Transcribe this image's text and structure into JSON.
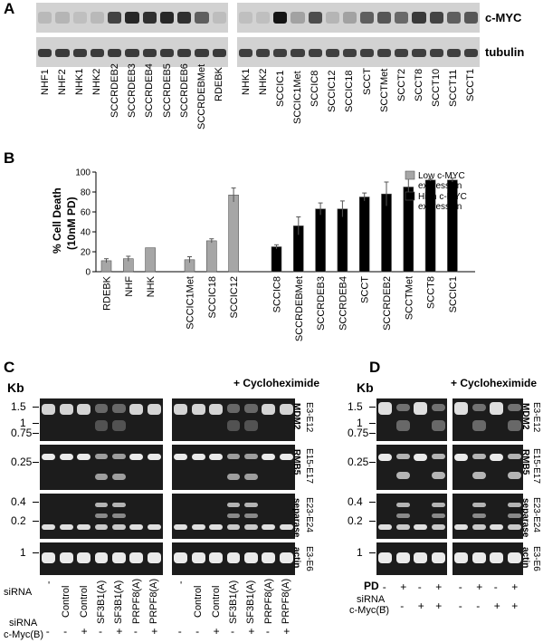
{
  "panel_labels": {
    "a": "A",
    "b": "B",
    "c": "C",
    "d": "D"
  },
  "panel_a": {
    "rows": [
      "c-MYC",
      "tubulin"
    ],
    "left_lanes": [
      "NHF1",
      "NHF2",
      "NHK1",
      "NHK2",
      "SCCRDEB2",
      "SCCRDEB3",
      "SCCRDEB4",
      "SCCRDEB5",
      "SCCRDEB6",
      "SCCRDEBMet",
      "RDEBK"
    ],
    "right_lanes": [
      "NHK1",
      "NHK2",
      "SCCIC1",
      "SCCIC1Met",
      "SCCIC8",
      "SCCIC12",
      "SCCIC18",
      "SCCT",
      "SCCTMet",
      "SCCT2",
      "SCCT8",
      "SCCT10",
      "SCCT11",
      "SCCT1"
    ],
    "left_myc": [
      0.08,
      0.1,
      0.05,
      0.08,
      0.7,
      0.85,
      0.8,
      0.85,
      0.8,
      0.55,
      0.06
    ],
    "right_myc": [
      0.05,
      0.05,
      0.95,
      0.2,
      0.65,
      0.1,
      0.2,
      0.55,
      0.6,
      0.5,
      0.75,
      0.7,
      0.55,
      0.6
    ]
  },
  "chart_data": {
    "type": "bar",
    "ylabel_line1": "% Cell Death",
    "ylabel_line2": "(10nM PD)",
    "ylim": [
      0,
      100
    ],
    "yticks": [
      "0",
      "20",
      "40",
      "60",
      "80",
      "100"
    ],
    "groups": [
      {
        "series": "low",
        "categories": [
          "RDEBK",
          "NHF",
          "NHK"
        ],
        "values": [
          11,
          13,
          24
        ],
        "errors": [
          2,
          2.5,
          0
        ]
      },
      {
        "series": "low",
        "categories": [
          "SCCIC1Met",
          "SCCIC18",
          "SCCIC12"
        ],
        "values": [
          12,
          31,
          77
        ],
        "errors": [
          3,
          2,
          7
        ]
      },
      {
        "series": "high",
        "categories": [
          "SCCIC8",
          "SCCRDEBMet",
          "SCCRDEB3",
          "SCCRDEB4",
          "SCCT",
          "SCCRDEB2",
          "SCCTMet",
          "SCCT8",
          "SCCIC1"
        ],
        "values": [
          25,
          46,
          63,
          63,
          75,
          78,
          85,
          92,
          92
        ],
        "errors": [
          2,
          9,
          6,
          8,
          4,
          12,
          13,
          1,
          2
        ]
      }
    ],
    "legend": [
      {
        "label1": "Low c-MYC",
        "label2": "expression",
        "color": "#a6a6a6"
      },
      {
        "label1": "High c-MYC",
        "label2": "expression",
        "color": "#000000"
      }
    ],
    "colors": {
      "low": "#a6a6a6",
      "high": "#000000"
    }
  },
  "panel_c": {
    "kb": "Kb",
    "cyclo": "+ Cycloheximide",
    "row_labels": [
      {
        "gene": "MDM2",
        "exons": "E3-E12",
        "ticks": [
          "1.5",
          "1",
          "0.75"
        ]
      },
      {
        "gene": "RMB5",
        "exons": "E15-E17",
        "ticks": [
          "0.25"
        ]
      },
      {
        "gene": "separase",
        "exons": "E23-E24",
        "ticks": [
          "0.4",
          "0.2"
        ]
      },
      {
        "gene": "actin",
        "exons": "E3-E6",
        "ticks": [
          "1"
        ]
      }
    ],
    "sirna_label": "siRNA",
    "sirna_lanes": [
      "-",
      "Control",
      "Control",
      "SF3B1(A)",
      "SF3B1(A)",
      "PRPF8(A)",
      "PRPF8(A)"
    ],
    "myc_label1": "siRNA",
    "myc_label2": "c-Myc(B)",
    "myc_signs": [
      "-",
      "-",
      "+",
      "-",
      "+",
      "-",
      "+"
    ]
  },
  "panel_d": {
    "kb": "Kb",
    "cyclo": "+ Cycloheximide",
    "pd_label": "PD",
    "pd_signs": [
      "-",
      "+",
      "-",
      "+"
    ],
    "sirna_label1": "siRNA",
    "sirna_label2": "c-Myc(B)",
    "myc_signs": [
      "-",
      "-",
      "+",
      "+"
    ]
  }
}
